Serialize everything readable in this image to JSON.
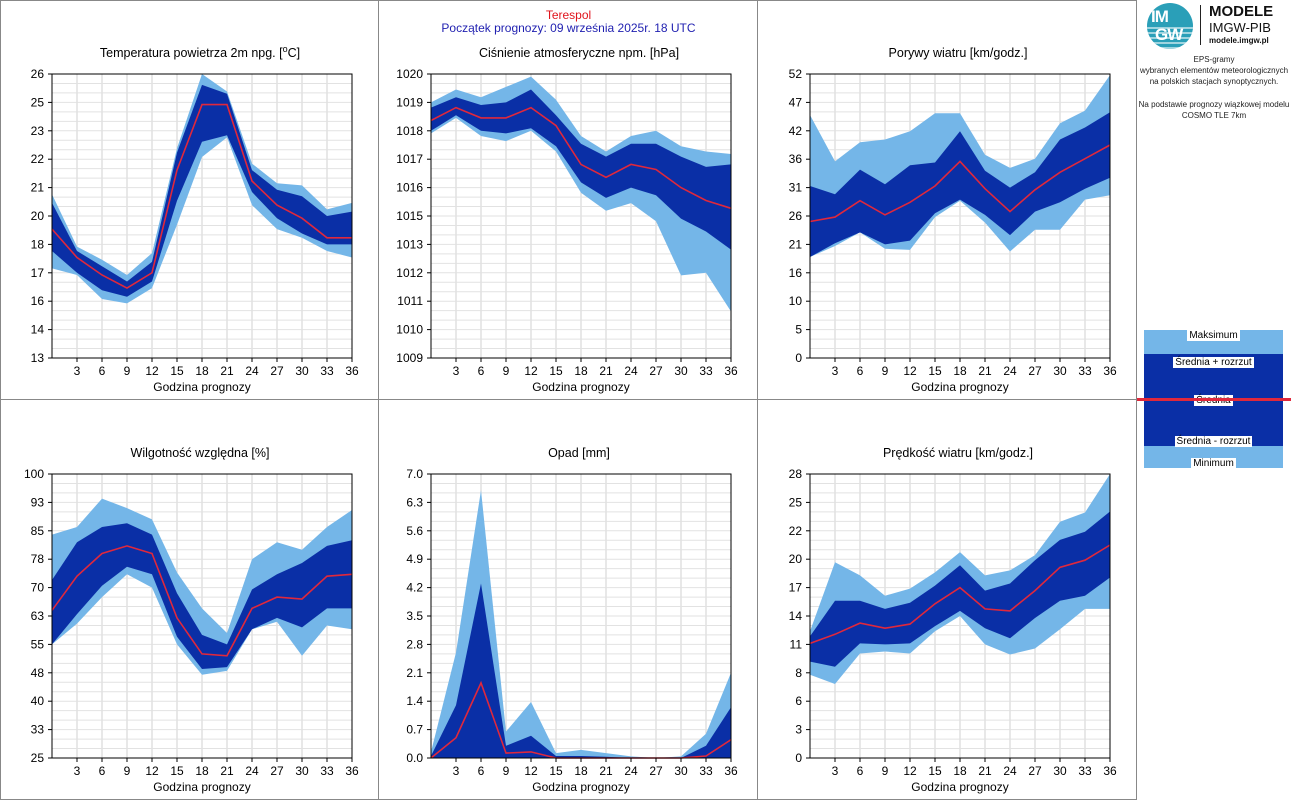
{
  "header": {
    "station": "Terespol",
    "forecast_start": "Początek prognozy: 09 września 2025r. 18 UTC"
  },
  "logo": {
    "letters_top": "IM",
    "letters_bottom": "GW",
    "brand": "MODELE",
    "org": "IMGW-PIB",
    "url": "modele.imgw.pl"
  },
  "info": {
    "lines1": [
      "EPS-gramy",
      "wybranych elementów meteorologicznych",
      "na polskich stacjach  synoptycznych."
    ],
    "lines2": [
      "Na podstawie prognozy wiązkowej modelu",
      "COSMO TLE 7km"
    ]
  },
  "legend": {
    "max": "Maksimum",
    "mean_plus": "Średnia + rozrzut",
    "mean": "Średnia",
    "mean_minus": "Średnia - rozrzut",
    "min": "Minimum"
  },
  "colors": {
    "outer_band": "#74b6e8",
    "inner_band": "#0a2fa6",
    "mean_line": "#e0283c",
    "grid": "#d0d0d0"
  },
  "chart_data": [
    {
      "type": "area",
      "title_pre": "Temperatura powietrza 2m npg. [",
      "title_sup": "o",
      "title_post": "C]",
      "xlabel": "Godzina prognozy",
      "x": [
        0,
        3,
        6,
        9,
        12,
        15,
        18,
        21,
        24,
        27,
        30,
        33,
        36
      ],
      "xticks": [
        "3",
        "6",
        "9",
        "12",
        "15",
        "18",
        "21",
        "24",
        "27",
        "30",
        "33",
        "36"
      ],
      "ylim": [
        13,
        26
      ],
      "yticks": [
        "13",
        "14",
        "16",
        "17",
        "18",
        "20",
        "21",
        "22",
        "23",
        "25",
        "26"
      ],
      "max": [
        20.5,
        18.1,
        17.5,
        16.8,
        17.8,
        22.6,
        26.0,
        25.2,
        21.9,
        21.0,
        20.9,
        19.8,
        20.1
      ],
      "mean_plus": [
        20.1,
        17.9,
        17.2,
        16.5,
        17.4,
        22.4,
        25.5,
        25.1,
        21.6,
        20.7,
        20.4,
        19.5,
        19.7
      ],
      "mean": [
        18.9,
        17.6,
        16.8,
        16.2,
        16.9,
        21.6,
        24.6,
        24.6,
        21.1,
        20.0,
        19.4,
        18.5,
        18.5
      ],
      "mean_minus": [
        17.9,
        16.9,
        16.1,
        15.8,
        16.5,
        20.2,
        22.9,
        23.2,
        20.6,
        19.4,
        18.7,
        18.2,
        18.2
      ],
      "min": [
        17.1,
        16.8,
        15.7,
        15.5,
        16.2,
        19.1,
        22.2,
        23.1,
        20.0,
        18.9,
        18.5,
        17.9,
        17.6
      ]
    },
    {
      "type": "area",
      "title_pre": "Ciśnienie atmosferyczne npm. [hPa]",
      "title_sup": "",
      "title_post": "",
      "xlabel": "Godzina prognozy",
      "x": [
        0,
        3,
        6,
        9,
        12,
        15,
        18,
        21,
        24,
        27,
        30,
        33,
        36
      ],
      "xticks": [
        "3",
        "6",
        "9",
        "12",
        "15",
        "18",
        "21",
        "24",
        "27",
        "30",
        "33",
        "36"
      ],
      "ylim": [
        1009,
        1020
      ],
      "yticks": [
        "1009",
        "1010",
        "1011",
        "1012",
        "1013",
        "1015",
        "1016",
        "1017",
        "1018",
        "1019",
        "1020"
      ],
      "max": [
        1018.9,
        1019.4,
        1019.1,
        1019.5,
        1019.9,
        1019.0,
        1017.6,
        1017.0,
        1017.6,
        1017.8,
        1017.2,
        1017.0,
        1016.9
      ],
      "mean_plus": [
        1018.7,
        1019.1,
        1018.8,
        1018.9,
        1019.4,
        1018.4,
        1017.3,
        1016.8,
        1017.3,
        1017.3,
        1016.8,
        1016.4,
        1016.5
      ],
      "mean": [
        1018.2,
        1018.7,
        1018.3,
        1018.3,
        1018.7,
        1018.0,
        1016.5,
        1016.0,
        1016.5,
        1016.3,
        1015.6,
        1015.1,
        1014.8
      ],
      "mean_minus": [
        1017.8,
        1018.4,
        1017.8,
        1017.7,
        1017.9,
        1017.2,
        1015.8,
        1015.2,
        1015.6,
        1015.3,
        1014.4,
        1013.9,
        1013.2
      ],
      "min": [
        1017.7,
        1018.3,
        1017.6,
        1017.4,
        1017.8,
        1017.0,
        1015.4,
        1014.7,
        1015.0,
        1014.3,
        1012.2,
        1012.3,
        1010.8
      ]
    },
    {
      "type": "area",
      "title_pre": "Porywy wiatru [km/godz.]",
      "title_sup": "",
      "title_post": "",
      "xlabel": "Godzina prognozy",
      "x": [
        0,
        3,
        6,
        9,
        12,
        15,
        18,
        21,
        24,
        27,
        30,
        33,
        36
      ],
      "xticks": [
        "3",
        "6",
        "9",
        "12",
        "15",
        "18",
        "21",
        "24",
        "27",
        "30",
        "33",
        "36"
      ],
      "ylim": [
        0,
        52
      ],
      "yticks": [
        "0",
        "5",
        "10",
        "16",
        "21",
        "26",
        "31",
        "36",
        "42",
        "47",
        "52"
      ],
      "max": [
        44.5,
        36.0,
        39.5,
        40.0,
        41.5,
        44.8,
        44.8,
        37.2,
        34.8,
        36.5,
        43.0,
        45.3,
        51.8
      ],
      "mean_plus": [
        31.5,
        30.0,
        34.5,
        31.8,
        35.3,
        35.8,
        41.5,
        34.3,
        31.2,
        34.0,
        40.0,
        42.2,
        45.0
      ],
      "mean": [
        25.0,
        25.8,
        28.8,
        26.2,
        28.5,
        31.5,
        36.0,
        31.0,
        26.8,
        30.8,
        34.0,
        36.5,
        39.0
      ],
      "mean_minus": [
        18.5,
        21.0,
        23.0,
        20.8,
        21.5,
        26.5,
        29.0,
        26.2,
        22.5,
        26.8,
        28.5,
        31.0,
        33.0
      ],
      "min": [
        18.5,
        20.5,
        23.0,
        20.0,
        19.8,
        25.8,
        28.8,
        24.8,
        19.5,
        23.5,
        23.5,
        29.0,
        29.8
      ]
    },
    {
      "type": "area",
      "title_pre": "Wilgotność względna [%]",
      "title_sup": "",
      "title_post": "",
      "xlabel": "Godzina prognozy",
      "x": [
        0,
        3,
        6,
        9,
        12,
        15,
        18,
        21,
        24,
        27,
        30,
        33,
        36
      ],
      "xticks": [
        "3",
        "6",
        "9",
        "12",
        "15",
        "18",
        "21",
        "24",
        "27",
        "30",
        "33",
        "36"
      ],
      "ylim": [
        25,
        100
      ],
      "yticks": [
        "25",
        "33",
        "40",
        "48",
        "55",
        "63",
        "70",
        "78",
        "85",
        "93",
        "100"
      ],
      "max": [
        84.0,
        86.0,
        93.5,
        91.0,
        88.0,
        74.0,
        64.5,
        58.0,
        77.5,
        82.0,
        80.0,
        86.0,
        90.5
      ],
      "mean_plus": [
        72.0,
        82.0,
        86.0,
        87.0,
        84.0,
        68.5,
        57.5,
        55.0,
        69.5,
        73.5,
        76.5,
        81.0,
        82.5
      ],
      "mean": [
        64.0,
        73.0,
        79.0,
        81.0,
        79.0,
        62.0,
        52.5,
        52.0,
        64.5,
        67.5,
        67.0,
        73.0,
        73.5
      ],
      "mean_minus": [
        55.0,
        63.0,
        70.5,
        75.5,
        73.5,
        57.0,
        48.5,
        49.0,
        59.0,
        62.0,
        59.5,
        64.5,
        64.5
      ],
      "min": [
        55.0,
        60.5,
        67.5,
        73.5,
        70.0,
        55.0,
        47.0,
        48.0,
        59.0,
        61.0,
        52.0,
        60.0,
        59.0
      ]
    },
    {
      "type": "area",
      "title_pre": "Opad [mm]",
      "title_sup": "",
      "title_post": "",
      "xlabel": "Godzina prognozy",
      "x": [
        0,
        3,
        6,
        9,
        12,
        15,
        18,
        21,
        24,
        27,
        30,
        33,
        36
      ],
      "xticks": [
        "3",
        "6",
        "9",
        "12",
        "15",
        "18",
        "21",
        "24",
        "27",
        "30",
        "33",
        "36"
      ],
      "ylim": [
        0,
        7
      ],
      "yticks": [
        "0.0",
        "0.7",
        "1.4",
        "2.1",
        "2.8",
        "3.5",
        "4.2",
        "4.9",
        "5.6",
        "6.3",
        "7.0"
      ],
      "max": [
        0.15,
        2.6,
        6.6,
        0.65,
        1.38,
        0.12,
        0.2,
        0.12,
        0.04,
        0.0,
        0.04,
        0.6,
        2.1
      ],
      "mean_plus": [
        0.05,
        1.3,
        4.3,
        0.3,
        0.55,
        0.05,
        0.05,
        0.03,
        0.0,
        0.0,
        0.0,
        0.3,
        1.25
      ],
      "mean": [
        0.0,
        0.5,
        1.85,
        0.12,
        0.15,
        0.0,
        0.0,
        0.0,
        0.0,
        0.0,
        0.0,
        0.05,
        0.45
      ],
      "mean_minus": [
        0.0,
        0.0,
        0.0,
        0.0,
        0.0,
        0.0,
        0.0,
        0.0,
        0.0,
        0.0,
        0.0,
        0.0,
        0.0
      ],
      "min": [
        0.0,
        0.0,
        0.0,
        0.0,
        0.0,
        0.0,
        0.0,
        0.0,
        0.0,
        0.0,
        0.0,
        0.0,
        0.0
      ]
    },
    {
      "type": "area",
      "title_pre": "Prędkość wiatru [km/godz.]",
      "title_sup": "",
      "title_post": "",
      "xlabel": "Godzina prognozy",
      "x": [
        0,
        3,
        6,
        9,
        12,
        15,
        18,
        21,
        24,
        27,
        30,
        33,
        36
      ],
      "xticks": [
        "3",
        "6",
        "9",
        "12",
        "15",
        "18",
        "21",
        "24",
        "27",
        "30",
        "33",
        "36"
      ],
      "ylim": [
        0,
        28
      ],
      "yticks": [
        "0",
        "3",
        "6",
        "8",
        "11",
        "14",
        "17",
        "20",
        "22",
        "25",
        "28"
      ],
      "max": [
        12.5,
        19.3,
        18.0,
        16.0,
        16.7,
        18.3,
        20.3,
        18.0,
        18.5,
        20.0,
        23.3,
        24.2,
        28.0
      ],
      "mean_plus": [
        12.0,
        15.5,
        15.5,
        14.7,
        15.3,
        17.0,
        19.0,
        16.5,
        17.2,
        19.5,
        21.5,
        22.3,
        24.3
      ],
      "mean": [
        11.3,
        12.2,
        13.3,
        12.8,
        13.2,
        15.2,
        16.8,
        14.7,
        14.5,
        16.5,
        18.8,
        19.5,
        21.0
      ],
      "mean_minus": [
        9.5,
        9.0,
        11.3,
        11.2,
        11.3,
        13.0,
        14.5,
        12.8,
        11.8,
        13.8,
        15.5,
        16.0,
        17.8
      ],
      "min": [
        8.2,
        7.3,
        10.3,
        10.5,
        10.3,
        12.5,
        14.0,
        11.2,
        10.2,
        10.8,
        12.7,
        14.7,
        14.7
      ]
    }
  ]
}
